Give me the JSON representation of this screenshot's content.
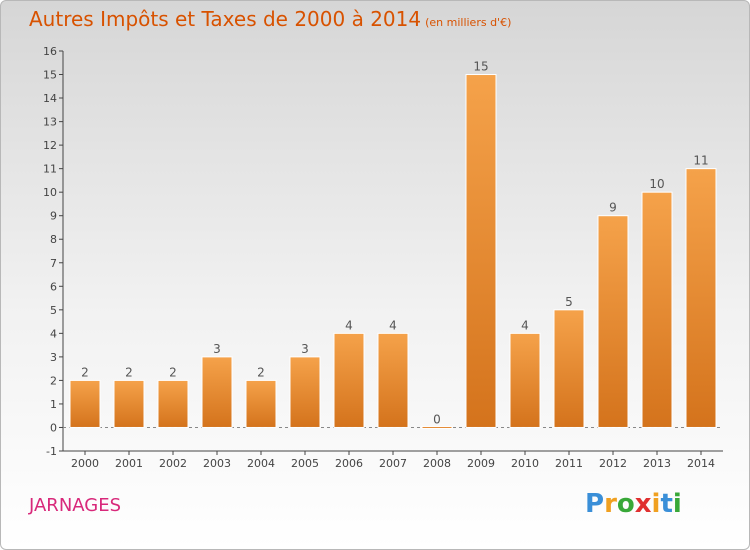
{
  "title": {
    "main": "Autres Impôts et Taxes de 2000 à 2014",
    "unit": "(en milliers d'€)"
  },
  "commune": "JARNAGES",
  "logo": {
    "letters": [
      "P",
      "r",
      "o",
      "x",
      "i",
      "t",
      "i"
    ],
    "colors": [
      "#3a8fd8",
      "#f0a020",
      "#38a838",
      "#e03030",
      "#f0a020",
      "#3a8fd8",
      "#38a838"
    ]
  },
  "colors": {
    "title": "#d85200",
    "commune": "#d8287a",
    "bar_light": "#f5a24a",
    "bar_dark": "#d4731c"
  },
  "chart_data": {
    "type": "bar",
    "categories": [
      "2000",
      "2001",
      "2002",
      "2003",
      "2004",
      "2005",
      "2006",
      "2007",
      "2008",
      "2009",
      "2010",
      "2011",
      "2012",
      "2013",
      "2014"
    ],
    "values": [
      2,
      2,
      2,
      3,
      2,
      3,
      4,
      4,
      0,
      15,
      4,
      5,
      9,
      10,
      11
    ],
    "data_labels": [
      "2",
      "2",
      "2",
      "3",
      "2",
      "3",
      "4",
      "4",
      "0",
      "15",
      "4",
      "5",
      "9",
      "10",
      "11"
    ],
    "yticks": [
      "-1",
      "0",
      "1",
      "2",
      "3",
      "4",
      "5",
      "6",
      "7",
      "8",
      "9",
      "10",
      "11",
      "12",
      "13",
      "14",
      "15",
      "16"
    ],
    "ylim": [
      -1,
      16
    ],
    "grid": false,
    "title": "Autres Impôts et Taxes de 2000 à 2014",
    "ylabel": "",
    "xlabel": ""
  }
}
